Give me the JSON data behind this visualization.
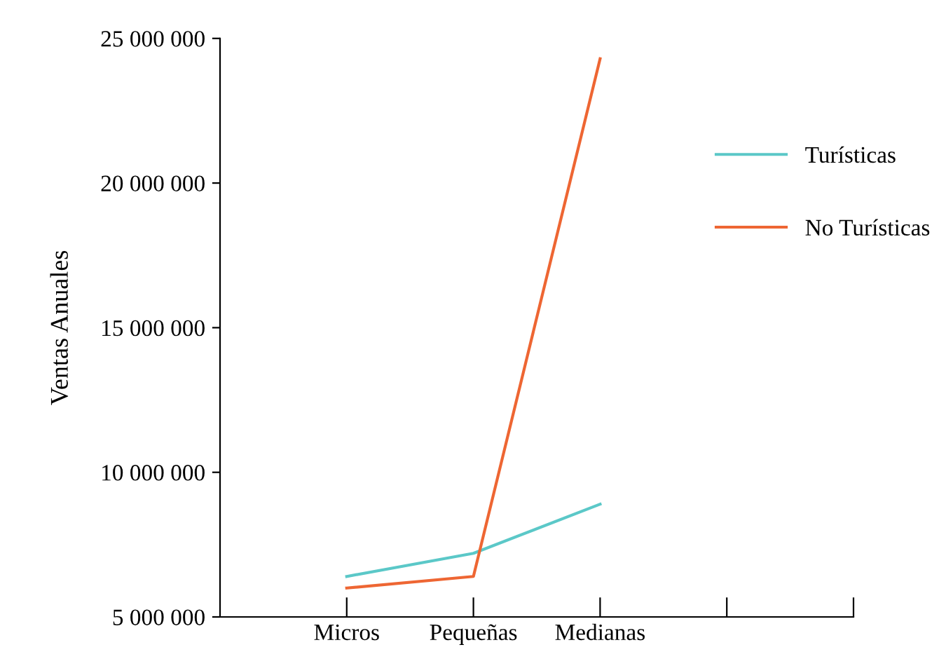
{
  "chart_data": {
    "type": "line",
    "ylabel": "Ventas Anuales",
    "categories": [
      "Micros",
      "Pequeñas",
      "Medianas",
      null,
      null
    ],
    "series": [
      {
        "name": "Turísticas",
        "color": "#5bc8c8",
        "values": [
          6400000,
          7200000,
          8900000,
          null,
          null
        ]
      },
      {
        "name": "No Turísticas",
        "color": "#ee6633",
        "values": [
          6000000,
          6400000,
          24300000,
          null,
          null
        ]
      }
    ],
    "ylim": [
      5000000,
      25000000
    ],
    "yticks": [
      {
        "value": 5000000,
        "label": "5 000 000"
      },
      {
        "value": 10000000,
        "label": "10 000 000"
      },
      {
        "value": 15000000,
        "label": "15 000 000"
      },
      {
        "value": 20000000,
        "label": "20 000 000"
      },
      {
        "value": 25000000,
        "label": "25 000 000"
      }
    ],
    "legend": "top right",
    "grid": false,
    "marker": "none",
    "line_style": "solid"
  }
}
